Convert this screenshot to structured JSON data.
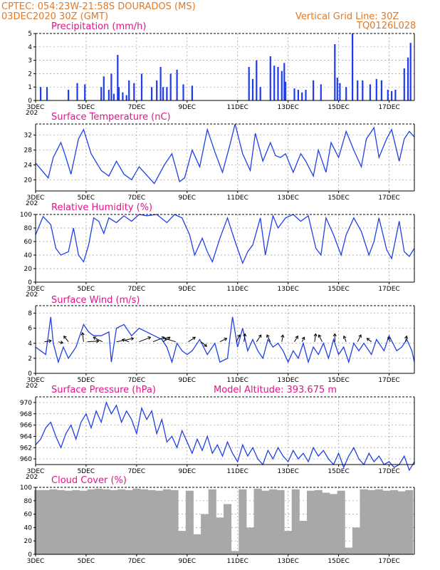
{
  "header": {
    "line1": "CPTEC:   054:23W-21:58S  DOURADOS (MS)",
    "line2": "03DEC2020 30Z (GMT)",
    "grid_note": "Vertical Grid Line: 30Z",
    "model_code": "TQ0126L028",
    "model_altitude": "Model Altitude: 393.675 m",
    "colors": {
      "header": "#e07a28",
      "panel_title": "#e0148c",
      "series": "#2040e8",
      "cloud": "#a8a8a8"
    }
  },
  "x_axis": {
    "start_day": 3,
    "end_day": 18,
    "tick_days": [
      3,
      5,
      7,
      9,
      11,
      13,
      15,
      17
    ],
    "tick_labels": [
      "3DEC",
      "5DEC",
      "7DEC",
      "9DEC",
      "11DEC",
      "13DEC",
      "15DEC",
      "17DEC"
    ],
    "year_stub": "202"
  },
  "chart_data": [
    {
      "id": "precip",
      "type": "bar",
      "title": "Precipitation (mm/h)",
      "ylim": [
        0,
        5
      ],
      "yticks": [
        0,
        1,
        2,
        3,
        4,
        5
      ],
      "x": [
        3.2,
        3.45,
        4.3,
        4.65,
        4.95,
        5.6,
        5.7,
        5.9,
        6.0,
        6.1,
        6.25,
        6.3,
        6.45,
        6.6,
        6.7,
        6.9,
        7.2,
        7.6,
        7.8,
        7.95,
        8.05,
        8.2,
        8.35,
        8.6,
        8.85,
        9.2,
        11.45,
        11.6,
        11.75,
        11.9,
        12.3,
        12.45,
        12.6,
        12.75,
        12.85,
        12.9,
        13.25,
        13.4,
        13.55,
        13.7,
        14.0,
        14.3,
        14.85,
        14.95,
        15.05,
        15.3,
        15.55,
        15.75,
        15.95,
        16.25,
        16.5,
        16.7,
        16.95,
        17.1,
        17.25,
        17.6,
        17.75,
        17.85
      ],
      "values": [
        1.0,
        1.0,
        0.8,
        1.3,
        1.2,
        1.0,
        1.8,
        0.8,
        2.0,
        0.5,
        3.4,
        1.0,
        0.6,
        0.4,
        1.5,
        1.3,
        2.0,
        1.0,
        1.5,
        2.5,
        1.0,
        1.0,
        2.0,
        2.3,
        1.2,
        1.1,
        2.5,
        1.6,
        3.0,
        1.0,
        3.3,
        2.6,
        2.5,
        2.2,
        2.8,
        1.4,
        0.9,
        0.8,
        0.6,
        0.8,
        1.5,
        1.2,
        4.2,
        1.7,
        1.3,
        1.0,
        5.0,
        1.5,
        1.5,
        1.2,
        1.6,
        1.5,
        0.8,
        0.7,
        0.8,
        2.4,
        3.2,
        4.3
      ]
    },
    {
      "id": "temp",
      "type": "line",
      "title": "Surface Temperature (nC)",
      "ylim": [
        17,
        35
      ],
      "yticks": [
        20,
        24,
        28,
        32
      ],
      "x": [
        3.0,
        3.5,
        3.7,
        4.0,
        4.2,
        4.4,
        4.7,
        4.9,
        5.2,
        5.6,
        5.9,
        6.2,
        6.5,
        6.8,
        7.1,
        7.3,
        7.7,
        8.1,
        8.4,
        8.7,
        8.9,
        9.2,
        9.5,
        9.8,
        10.1,
        10.4,
        10.7,
        10.9,
        11.2,
        11.5,
        11.7,
        12.0,
        12.3,
        12.5,
        12.7,
        12.9,
        13.2,
        13.5,
        13.7,
        14.0,
        14.2,
        14.5,
        14.7,
        15.0,
        15.3,
        15.6,
        15.9,
        16.1,
        16.4,
        16.6,
        16.9,
        17.1,
        17.4,
        17.6,
        17.8,
        18.0
      ],
      "values": [
        24.5,
        20.5,
        26.0,
        30.0,
        26.0,
        21.5,
        31.0,
        33.5,
        27.0,
        22.5,
        21.0,
        25.0,
        21.5,
        20.0,
        23.5,
        22.0,
        19.0,
        24.0,
        27.0,
        19.5,
        20.5,
        28.0,
        23.5,
        33.5,
        27.5,
        22.0,
        29.5,
        35.0,
        27.0,
        22.5,
        32.5,
        25.0,
        30.0,
        26.5,
        26.0,
        27.0,
        22.0,
        27.0,
        25.0,
        21.0,
        28.0,
        22.0,
        30.0,
        26.0,
        33.0,
        28.0,
        23.5,
        31.0,
        34.0,
        26.0,
        31.0,
        33.5,
        25.0,
        31.0,
        33.0,
        31.5
      ]
    },
    {
      "id": "rh",
      "type": "line",
      "title": "Relative Humidity (%)",
      "ylim": [
        0,
        100
      ],
      "yticks": [
        0,
        20,
        40,
        60,
        80,
        100
      ],
      "x": [
        3.0,
        3.3,
        3.6,
        3.8,
        4.0,
        4.3,
        4.5,
        4.7,
        4.9,
        5.1,
        5.3,
        5.5,
        5.7,
        5.9,
        6.2,
        6.5,
        6.8,
        7.1,
        7.4,
        7.8,
        8.2,
        8.5,
        8.8,
        9.1,
        9.3,
        9.6,
        9.8,
        10.0,
        10.3,
        10.6,
        10.9,
        11.2,
        11.4,
        11.6,
        11.9,
        12.1,
        12.4,
        12.6,
        12.9,
        13.2,
        13.5,
        13.8,
        14.1,
        14.3,
        14.5,
        14.8,
        15.1,
        15.3,
        15.6,
        15.9,
        16.2,
        16.4,
        16.6,
        16.9,
        17.1,
        17.4,
        17.6,
        17.8,
        18.0
      ],
      "values": [
        70,
        97,
        85,
        50,
        40,
        45,
        80,
        40,
        30,
        55,
        95,
        90,
        72,
        95,
        88,
        98,
        90,
        100,
        98,
        100,
        88,
        100,
        95,
        70,
        40,
        65,
        45,
        30,
        65,
        95,
        60,
        28,
        45,
        55,
        95,
        40,
        98,
        80,
        95,
        100,
        90,
        98,
        50,
        40,
        95,
        70,
        40,
        70,
        95,
        75,
        40,
        60,
        95,
        48,
        35,
        90,
        45,
        38,
        50
      ]
    },
    {
      "id": "wind",
      "type": "line",
      "title": "Surface Wind (m/s)",
      "ylim": [
        0,
        9
      ],
      "yticks": [
        0,
        2,
        4,
        6,
        8
      ],
      "x": [
        3.0,
        3.2,
        3.4,
        3.6,
        3.7,
        3.9,
        4.1,
        4.3,
        4.6,
        4.9,
        5.1,
        5.3,
        5.6,
        5.9,
        6.0,
        6.2,
        6.5,
        6.8,
        7.1,
        7.4,
        7.7,
        8.0,
        8.2,
        8.4,
        8.6,
        8.8,
        9.0,
        9.2,
        9.5,
        9.8,
        10.1,
        10.3,
        10.6,
        10.8,
        11.0,
        11.2,
        11.4,
        11.6,
        11.8,
        12.0,
        12.2,
        12.4,
        12.6,
        12.8,
        13.0,
        13.2,
        13.4,
        13.6,
        13.8,
        14.0,
        14.2,
        14.4,
        14.6,
        14.8,
        15.0,
        15.2,
        15.4,
        15.6,
        15.8,
        16.0,
        16.3,
        16.5,
        16.8,
        17.0,
        17.3,
        17.5,
        17.7,
        17.9,
        18.0
      ],
      "values": [
        3.5,
        3.0,
        2.5,
        7.5,
        4.0,
        1.5,
        3.5,
        2.0,
        3.5,
        6.5,
        5.5,
        5.0,
        5.0,
        5.5,
        1.5,
        6.0,
        6.5,
        5.0,
        6.0,
        5.5,
        5.0,
        4.5,
        3.5,
        1.5,
        4.0,
        3.0,
        2.5,
        3.0,
        4.5,
        2.5,
        4.0,
        1.5,
        2.0,
        7.5,
        3.5,
        6.0,
        3.0,
        4.5,
        3.0,
        2.0,
        4.5,
        3.5,
        4.0,
        3.0,
        1.5,
        3.0,
        2.0,
        4.0,
        1.5,
        3.5,
        2.5,
        4.0,
        2.0,
        4.5,
        2.5,
        3.5,
        1.5,
        4.0,
        3.0,
        4.0,
        2.5,
        4.5,
        3.0,
        5.0,
        3.0,
        3.5,
        4.5,
        3.0,
        1.5
      ],
      "vectors": [
        {
          "day": 3.35,
          "u": 3.0,
          "v": 0.5
        },
        {
          "day": 3.9,
          "u": 2.0,
          "v": -0.5
        },
        {
          "day": 4.3,
          "u": -2.0,
          "v": 2.5
        },
        {
          "day": 4.9,
          "u": -0.5,
          "v": 4.0
        },
        {
          "day": 5.05,
          "u": 5.0,
          "v": 0.3
        },
        {
          "day": 5.65,
          "u": -4.0,
          "v": 2.0
        },
        {
          "day": 6.2,
          "u": 7.5,
          "v": 1.5
        },
        {
          "day": 6.7,
          "u": -3.0,
          "v": 1.0
        },
        {
          "day": 7.1,
          "u": 5.0,
          "v": 2.0
        },
        {
          "day": 7.65,
          "u": 5.0,
          "v": 2.0
        },
        {
          "day": 8.05,
          "u": 3.0,
          "v": 2.0
        },
        {
          "day": 8.55,
          "u": -5.0,
          "v": 1.5
        },
        {
          "day": 9.05,
          "u": 3.0,
          "v": 2.0
        },
        {
          "day": 9.55,
          "u": 2.5,
          "v": -2.0
        },
        {
          "day": 10.3,
          "u": 3.0,
          "v": 1.5
        },
        {
          "day": 10.95,
          "u": 1.5,
          "v": 3.0
        },
        {
          "day": 11.25,
          "u": 0.5,
          "v": 3.5
        },
        {
          "day": 11.75,
          "u": 2.0,
          "v": 3.0
        },
        {
          "day": 12.3,
          "u": -1.5,
          "v": 3.0
        },
        {
          "day": 12.75,
          "u": 0.5,
          "v": 3.0
        },
        {
          "day": 13.25,
          "u": 1.5,
          "v": 2.5
        },
        {
          "day": 13.55,
          "u": 1.0,
          "v": 2.0
        },
        {
          "day": 14.05,
          "u": 0.5,
          "v": 3.5
        },
        {
          "day": 14.35,
          "u": -1.5,
          "v": 3.0
        },
        {
          "day": 14.85,
          "u": 0.0,
          "v": 3.5
        },
        {
          "day": 15.3,
          "u": -1.0,
          "v": 2.5
        },
        {
          "day": 15.75,
          "u": 1.5,
          "v": 3.0
        },
        {
          "day": 16.3,
          "u": -2.0,
          "v": 1.5
        },
        {
          "day": 17.05,
          "u": -1.0,
          "v": 2.0
        },
        {
          "day": 17.65,
          "u": 0.5,
          "v": 2.5
        }
      ]
    },
    {
      "id": "pressure",
      "type": "line",
      "title": "Surface Pressure (hPa)",
      "ylim": [
        959,
        971
      ],
      "yticks": [
        960,
        962,
        964,
        966,
        968,
        970
      ],
      "x": [
        3.0,
        3.2,
        3.4,
        3.6,
        3.8,
        4.0,
        4.2,
        4.4,
        4.6,
        4.8,
        5.0,
        5.2,
        5.4,
        5.6,
        5.8,
        6.0,
        6.2,
        6.4,
        6.6,
        6.8,
        7.0,
        7.2,
        7.4,
        7.6,
        7.8,
        8.0,
        8.2,
        8.4,
        8.6,
        8.8,
        9.0,
        9.2,
        9.4,
        9.6,
        9.8,
        10.0,
        10.2,
        10.4,
        10.6,
        10.8,
        11.0,
        11.2,
        11.4,
        11.6,
        11.8,
        12.0,
        12.2,
        12.4,
        12.6,
        12.8,
        13.0,
        13.2,
        13.4,
        13.6,
        13.8,
        14.0,
        14.2,
        14.4,
        14.6,
        14.8,
        15.0,
        15.2,
        15.4,
        15.6,
        15.8,
        16.0,
        16.2,
        16.4,
        16.6,
        16.8,
        17.0,
        17.2,
        17.4,
        17.6,
        17.8,
        18.0
      ],
      "values": [
        962.5,
        963.5,
        965.5,
        966.5,
        964.0,
        962.0,
        964.5,
        966.0,
        963.5,
        966.5,
        968.0,
        965.5,
        968.5,
        966.5,
        970.0,
        968.0,
        969.5,
        966.5,
        968.5,
        967.0,
        964.5,
        969.0,
        967.0,
        968.5,
        964.5,
        967.0,
        963.0,
        964.0,
        962.0,
        965.0,
        963.0,
        961.0,
        963.5,
        961.5,
        964.0,
        961.0,
        962.5,
        960.5,
        963.0,
        961.0,
        959.5,
        962.5,
        960.5,
        962.0,
        960.0,
        959.0,
        961.5,
        960.0,
        962.0,
        960.5,
        959.5,
        961.5,
        960.0,
        961.0,
        959.5,
        962.0,
        960.5,
        961.5,
        960.0,
        959.0,
        961.0,
        958.5,
        960.5,
        962.0,
        960.0,
        959.0,
        961.0,
        959.5,
        960.5,
        959.0,
        959.5,
        958.5,
        959.0,
        960.5,
        958.0,
        959.5
      ]
    },
    {
      "id": "cloud",
      "type": "bar",
      "title": "Cloud Cover (%)",
      "ylim": [
        0,
        100
      ],
      "yticks": [
        0,
        20,
        40,
        60,
        80,
        100
      ],
      "x": [
        3.1,
        3.4,
        3.7,
        4.0,
        4.3,
        4.6,
        4.9,
        5.2,
        5.5,
        5.8,
        6.1,
        6.4,
        6.7,
        7.0,
        7.3,
        7.6,
        7.9,
        8.2,
        8.5,
        8.8,
        9.1,
        9.4,
        9.7,
        10.0,
        10.3,
        10.6,
        10.9,
        11.2,
        11.5,
        11.8,
        12.1,
        12.4,
        12.7,
        13.0,
        13.3,
        13.6,
        13.9,
        14.2,
        14.5,
        14.8,
        15.1,
        15.4,
        15.7,
        16.0,
        16.3,
        16.6,
        16.9,
        17.2,
        17.5,
        17.8
      ],
      "values": [
        96,
        96,
        97,
        96,
        95,
        96,
        95,
        97,
        98,
        97,
        96,
        97,
        96,
        98,
        97,
        96,
        95,
        97,
        96,
        35,
        95,
        30,
        60,
        97,
        55,
        75,
        5,
        97,
        40,
        98,
        95,
        97,
        96,
        35,
        97,
        50,
        95,
        96,
        92,
        90,
        95,
        10,
        40,
        97,
        96,
        97,
        95,
        96,
        94,
        96
      ]
    }
  ]
}
